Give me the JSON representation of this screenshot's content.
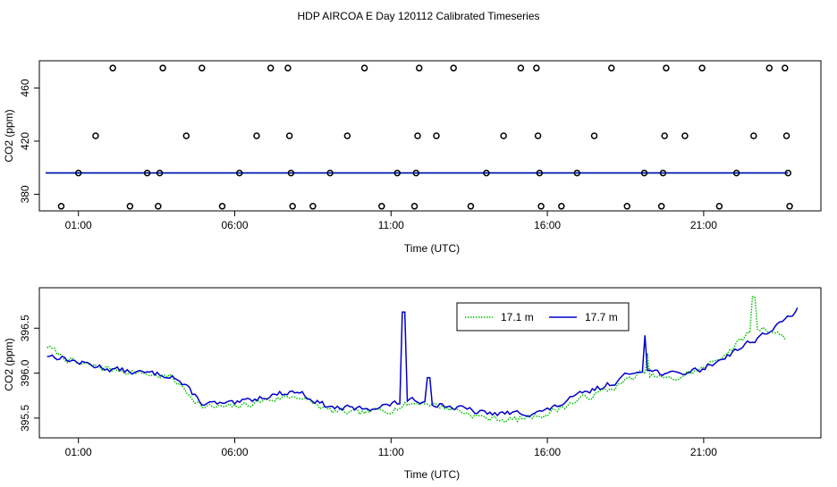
{
  "figure_title": "HDP AIRCOA E  Day 120112  Calibrated Timeseries",
  "chart_data": [
    {
      "type": "scatter",
      "xlabel": "Time (UTC)",
      "ylabel": "CO2 (ppm)",
      "x_tick_values": [
        1,
        6,
        11,
        16,
        21
      ],
      "x_tick_labels": [
        "01:00",
        "06:00",
        "11:00",
        "16:00",
        "21:00"
      ],
      "y_tick_values": [
        380,
        420,
        460
      ],
      "y_tick_labels": [
        "380",
        "420",
        "460"
      ],
      "xlim": [
        -0.25,
        24.75
      ],
      "ylim": [
        367.5,
        480.5
      ],
      "grid": false,
      "scatter_points": [
        [
          0.45,
          371
        ],
        [
          1.0,
          396
        ],
        [
          1.55,
          424
        ],
        [
          2.1,
          475
        ],
        [
          2.65,
          371
        ],
        [
          3.2,
          396
        ],
        [
          3.55,
          371
        ],
        [
          3.6,
          396
        ],
        [
          3.7,
          475
        ],
        [
          4.45,
          424
        ],
        [
          4.95,
          475
        ],
        [
          5.6,
          371
        ],
        [
          6.15,
          396
        ],
        [
          6.7,
          424
        ],
        [
          7.15,
          475
        ],
        [
          7.7,
          475
        ],
        [
          7.75,
          424
        ],
        [
          7.8,
          396
        ],
        [
          7.85,
          371
        ],
        [
          8.5,
          371
        ],
        [
          9.05,
          396
        ],
        [
          9.6,
          424
        ],
        [
          10.15,
          475
        ],
        [
          10.7,
          371
        ],
        [
          11.2,
          396
        ],
        [
          11.75,
          371
        ],
        [
          11.8,
          396
        ],
        [
          11.85,
          424
        ],
        [
          11.9,
          475
        ],
        [
          12.45,
          424
        ],
        [
          13.0,
          475
        ],
        [
          13.55,
          371
        ],
        [
          14.05,
          396
        ],
        [
          14.6,
          424
        ],
        [
          15.15,
          475
        ],
        [
          15.65,
          475
        ],
        [
          15.7,
          424
        ],
        [
          15.75,
          396
        ],
        [
          15.8,
          371
        ],
        [
          16.45,
          371
        ],
        [
          16.95,
          396
        ],
        [
          17.5,
          424
        ],
        [
          18.05,
          475
        ],
        [
          18.55,
          371
        ],
        [
          19.1,
          396
        ],
        [
          19.65,
          371
        ],
        [
          19.7,
          396
        ],
        [
          19.75,
          424
        ],
        [
          19.8,
          475
        ],
        [
          20.4,
          424
        ],
        [
          20.95,
          475
        ],
        [
          21.5,
          371
        ],
        [
          22.05,
          396
        ],
        [
          22.6,
          424
        ],
        [
          23.1,
          475
        ],
        [
          23.6,
          475
        ],
        [
          23.65,
          424
        ],
        [
          23.7,
          396
        ],
        [
          23.75,
          371
        ]
      ],
      "baseline_series": [
        {
          "name": "17.1 m",
          "color": "#00c000",
          "x": [
            -0.05,
            23.7
          ],
          "y": [
            396.0,
            396.0
          ]
        },
        {
          "name": "17.7 m",
          "color": "#0000cc",
          "x": [
            -0.05,
            23.7
          ],
          "y": [
            396.1,
            396.1
          ]
        }
      ]
    },
    {
      "type": "line",
      "xlabel": "Time (UTC)",
      "ylabel": "CO2 (ppm)",
      "x_tick_values": [
        1,
        6,
        11,
        16,
        21
      ],
      "x_tick_labels": [
        "01:00",
        "06:00",
        "11:00",
        "16:00",
        "21:00"
      ],
      "y_tick_values": [
        395.5,
        396.0,
        396.5
      ],
      "y_tick_labels": [
        "395.5",
        "396.0",
        "396.5"
      ],
      "xlim": [
        -0.25,
        24.75
      ],
      "ylim": [
        395.28,
        396.95
      ],
      "grid": false,
      "legend_position": "top-center",
      "series": [
        {
          "name": "17.1 m",
          "color": "#00c000",
          "dash": "dotted",
          "anchors": [
            [
              0.0,
              396.3
            ],
            [
              0.4,
              396.2
            ],
            [
              1.0,
              396.1
            ],
            [
              2.0,
              396.05
            ],
            [
              3.0,
              396.0
            ],
            [
              4.0,
              395.95
            ],
            [
              4.5,
              395.78
            ],
            [
              5.0,
              395.62
            ],
            [
              6.0,
              395.62
            ],
            [
              7.0,
              395.7
            ],
            [
              8.0,
              395.75
            ],
            [
              9.0,
              395.58
            ],
            [
              10.0,
              395.55
            ],
            [
              11.0,
              395.6
            ],
            [
              11.5,
              395.65
            ],
            [
              12.0,
              395.68
            ],
            [
              13.0,
              395.6
            ],
            [
              14.0,
              395.5
            ],
            [
              15.0,
              395.48
            ],
            [
              15.5,
              395.52
            ],
            [
              16.0,
              395.55
            ],
            [
              17.0,
              395.7
            ],
            [
              18.0,
              395.82
            ],
            [
              19.0,
              396.0
            ],
            [
              20.0,
              395.92
            ],
            [
              20.5,
              396.0
            ],
            [
              21.0,
              396.05
            ],
            [
              22.0,
              396.3
            ],
            [
              22.6,
              396.5
            ],
            [
              23.0,
              396.5
            ],
            [
              23.6,
              396.4
            ]
          ],
          "noise": 0.06,
          "seed": 7,
          "spikes": [
            [
              22.6,
              396.85
            ],
            [
              19.2,
              396.22
            ]
          ]
        },
        {
          "name": "17.7 m",
          "color": "#0000cc",
          "dash": "solid",
          "anchors": [
            [
              0.0,
              396.2
            ],
            [
              0.4,
              396.18
            ],
            [
              1.0,
              396.12
            ],
            [
              2.0,
              396.05
            ],
            [
              3.0,
              396.0
            ],
            [
              4.0,
              395.98
            ],
            [
              4.5,
              395.82
            ],
            [
              5.0,
              395.66
            ],
            [
              6.0,
              395.65
            ],
            [
              7.0,
              395.75
            ],
            [
              8.0,
              395.8
            ],
            [
              9.0,
              395.62
            ],
            [
              10.0,
              395.6
            ],
            [
              11.0,
              395.65
            ],
            [
              12.0,
              395.7
            ],
            [
              13.0,
              395.62
            ],
            [
              14.0,
              395.55
            ],
            [
              15.0,
              395.55
            ],
            [
              16.0,
              395.58
            ],
            [
              17.0,
              395.75
            ],
            [
              18.0,
              395.88
            ],
            [
              19.0,
              396.05
            ],
            [
              20.0,
              395.98
            ],
            [
              21.0,
              396.05
            ],
            [
              22.0,
              396.25
            ],
            [
              23.0,
              396.45
            ],
            [
              23.5,
              396.55
            ],
            [
              24.0,
              396.72
            ]
          ],
          "noise": 0.055,
          "seed": 13,
          "spikes": [
            [
              11.4,
              396.68
            ],
            [
              12.2,
              395.95
            ],
            [
              19.1,
              396.42
            ]
          ]
        }
      ]
    }
  ]
}
